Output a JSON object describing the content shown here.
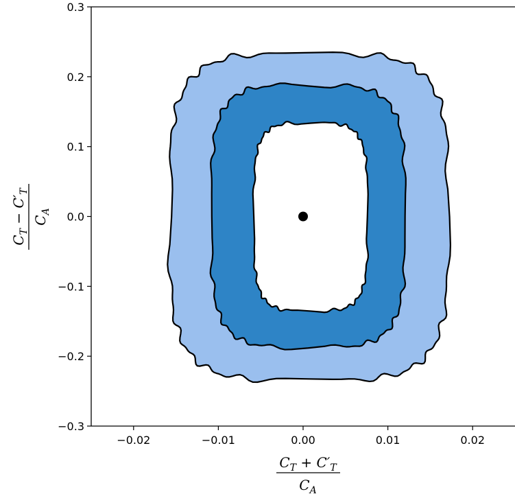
{
  "chart_data": {
    "type": "area",
    "title": "",
    "xlabel": {
      "numerator": "C_T + C'_T",
      "denominator": "C_A",
      "parts": {
        "c": "C",
        "t": "T",
        "plus": " + ",
        "minus": " − ",
        "prime": "′",
        "a": "A"
      }
    },
    "ylabel": {
      "numerator": "C_T − C'_T",
      "denominator": "C_A"
    },
    "xlim": [
      -0.025,
      0.025
    ],
    "ylim": [
      -0.3,
      0.3
    ],
    "xticks": [
      -0.02,
      -0.01,
      0.0,
      0.01,
      0.02
    ],
    "xtick_labels": [
      "−0.02",
      "−0.01",
      "0.00",
      "0.01",
      "0.02"
    ],
    "yticks": [
      -0.3,
      -0.2,
      -0.1,
      0.0,
      0.1,
      0.2,
      0.3
    ],
    "ytick_labels": [
      "−0.3",
      "−0.2",
      "−0.1",
      "0.0",
      "0.1",
      "0.2",
      "0.3"
    ],
    "grid": false,
    "legend": "none",
    "colors": {
      "outer_band": "#9ABFEE",
      "inner_band": "#2E84C6",
      "center": "#FFFFFF",
      "contour": "#000000",
      "point": "#000000"
    },
    "regions": [
      {
        "level": "outer",
        "x_range": [
          -0.0157,
          0.0171
        ],
        "y_range": [
          -0.234,
          0.233
        ]
      },
      {
        "level": "inner",
        "x_range": [
          -0.0108,
          0.012
        ],
        "y_range": [
          -0.187,
          0.188
        ]
      },
      {
        "level": "center",
        "x_range": [
          -0.0058,
          0.0076
        ],
        "y_range": [
          -0.135,
          0.134
        ]
      }
    ],
    "point": {
      "x": 0.0,
      "y": 0.0
    }
  }
}
